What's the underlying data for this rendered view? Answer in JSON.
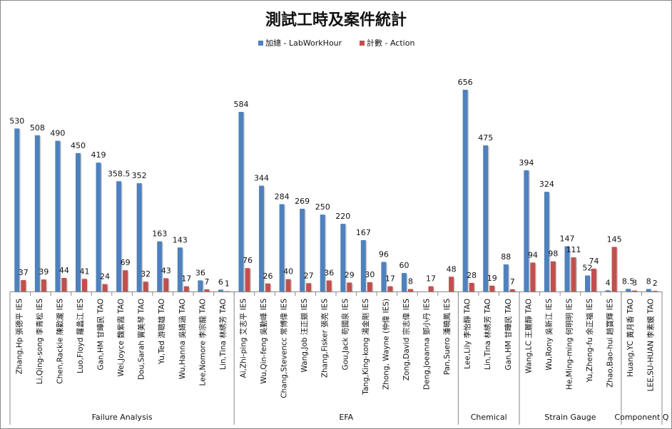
{
  "chart_data": {
    "type": "bar",
    "title": "測試工時及案件統計",
    "legend_position": "top",
    "series": [
      {
        "name": "加總 - LabWorkHour",
        "color": "#4f81bd"
      },
      {
        "name": "計數 - Action",
        "color": "#c0504d"
      }
    ],
    "categories": [
      {
        "label": "Zhang,Hp 張德平 IES",
        "hours": "530",
        "hours_value": 530,
        "count": "37",
        "count_value": 37,
        "group": 0
      },
      {
        "label": "Li,Qing-song 李青松 IES",
        "hours": "508",
        "hours_value": 508,
        "count": "39",
        "count_value": 39,
        "group": 0
      },
      {
        "label": "Chen,Rackie 陳歡瀧 IES",
        "hours": "490",
        "hours_value": 490,
        "count": "44",
        "count_value": 44,
        "group": 0
      },
      {
        "label": "Luo,Floyd 羅蠡江 IES",
        "hours": "450",
        "hours_value": 450,
        "count": "41",
        "count_value": 41,
        "group": 0
      },
      {
        "label": "Gan,HM 甘曄民 TAO",
        "hours": "419",
        "hours_value": 419,
        "count": "24",
        "count_value": 24,
        "group": 0
      },
      {
        "label": "Wei,Joyce 魏紫霞 TAO",
        "hours": "358.5",
        "hours_value": 358.5,
        "count": "69",
        "count_value": 69,
        "group": 0
      },
      {
        "label": "Dou,Sarah 竇美琴 TAO",
        "hours": "352",
        "hours_value": 352,
        "count": "32",
        "count_value": 32,
        "group": 0
      },
      {
        "label": "Yu,Ted 游聰雄 TAO",
        "hours": "163",
        "hours_value": 163,
        "count": "43",
        "count_value": 43,
        "group": 0
      },
      {
        "label": "Wu,Hanna 吳婧涵 TAO",
        "hours": "143",
        "hours_value": 143,
        "count": "17",
        "count_value": 17,
        "group": 0
      },
      {
        "label": "Lee,Nomore 李宗龍 TAO",
        "hours": "36",
        "hours_value": 36,
        "count": "7",
        "count_value": 7,
        "group": 0
      },
      {
        "label": "Lin,Tina 林綉芳 TAO",
        "hours": "6",
        "hours_value": 6,
        "count": "1",
        "count_value": 1,
        "group": 0
      },
      {
        "label": "Ai,Zhi-ping 艾志平 IES",
        "hours": "584",
        "hours_value": 584,
        "count": "76",
        "count_value": 76,
        "group": 1
      },
      {
        "label": "Wu,Qin-feng 吳勤峰 IES",
        "hours": "344",
        "hours_value": 344,
        "count": "26",
        "count_value": 26,
        "group": 1
      },
      {
        "label": "Chang,Stevencc 常博偉 IES",
        "hours": "284",
        "hours_value": 284,
        "count": "40",
        "count_value": 40,
        "group": 1
      },
      {
        "label": "Wang,Job 汪正銀 IES",
        "hours": "269",
        "hours_value": 269,
        "count": "27",
        "count_value": 27,
        "group": 1
      },
      {
        "label": "Zhang,Fisker 張亮 IES",
        "hours": "250",
        "hours_value": 250,
        "count": "36",
        "count_value": 36,
        "group": 1
      },
      {
        "label": "Gou,Jack 苟國泉 IES",
        "hours": "220",
        "hours_value": 220,
        "count": "29",
        "count_value": 29,
        "group": 1
      },
      {
        "label": "Tang,King-kong 湯金剛 IES",
        "hours": "167",
        "hours_value": 167,
        "count": "30",
        "count_value": 30,
        "group": 1
      },
      {
        "label": "Zhong, Wayne (仲偉 IES)",
        "hours": "96",
        "hours_value": 96,
        "count": "17",
        "count_value": 17,
        "group": 1
      },
      {
        "label": "Zong,David 宗志偉 IES",
        "hours": "60",
        "hours_value": 60,
        "count": "8",
        "count_value": 8,
        "group": 1
      },
      {
        "label": "Deng,Joeanna 鄧小丹 IES",
        "hours": "",
        "hours_value": 0,
        "count": "17",
        "count_value": 17,
        "group": 1
      },
      {
        "label": "Pan,Suero 潘曉鳳 IES",
        "hours": "",
        "hours_value": 0,
        "count": "48",
        "count_value": 48,
        "group": 1
      },
      {
        "label": "Lee,Lily 李怡靜 TAO",
        "hours": "656",
        "hours_value": 656,
        "count": "28",
        "count_value": 28,
        "group": 2
      },
      {
        "label": "Lin,Tina 林綉芳 TAO",
        "hours": "475",
        "hours_value": 475,
        "count": "19",
        "count_value": 19,
        "group": 2
      },
      {
        "label": "Gan,HM 甘曄民 TAO",
        "hours": "88",
        "hours_value": 88,
        "count": "7",
        "count_value": 7,
        "group": 2
      },
      {
        "label": "Wang,LC 王麗靜 TAO",
        "hours": "394",
        "hours_value": 394,
        "count": "94",
        "count_value": 94,
        "group": 3
      },
      {
        "label": "Wu,Rony 吳新江 IES",
        "hours": "324",
        "hours_value": 324,
        "count": "98",
        "count_value": 98,
        "group": 3
      },
      {
        "label": "He,Ming-ming 何明明 IES",
        "hours": "147",
        "hours_value": 147,
        "count": "111",
        "count_value": 111,
        "group": 3
      },
      {
        "label": "Yu,Zheng-fu 余正福 IES",
        "hours": "52",
        "hours_value": 52,
        "count": "74",
        "count_value": 74,
        "group": 3
      },
      {
        "label": "Zhao,Bao-hui 趙寶輝 IES",
        "hours": "4",
        "hours_value": 4,
        "count": "145",
        "count_value": 145,
        "group": 3
      },
      {
        "label": "Huang,YC 黃月香 TAO",
        "hours": "8.5",
        "hours_value": 8.5,
        "count": "3",
        "count_value": 3,
        "group": 4
      },
      {
        "label": "LEE,SU-HUAN 李素媛 TAO",
        "hours": "8",
        "hours_value": 8,
        "count": "2",
        "count_value": 2,
        "group": 4
      }
    ],
    "groups": [
      "Failure Analysis",
      "EFA",
      "Chemical",
      "Strain Gauge",
      "Component Q"
    ],
    "ylim": [
      0,
      720
    ],
    "grid": false
  }
}
